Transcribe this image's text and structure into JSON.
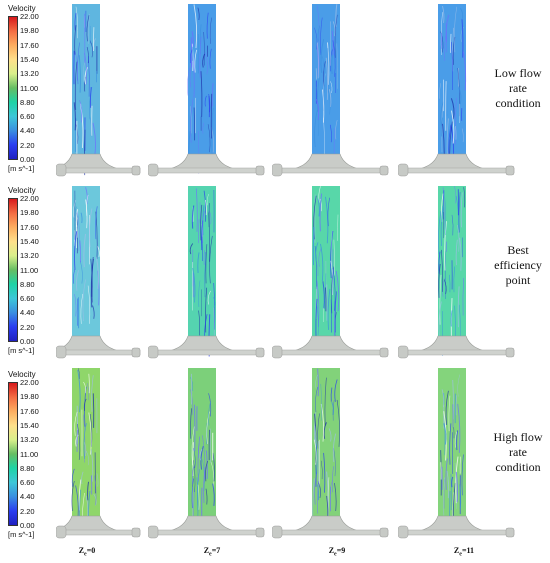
{
  "colorbar": {
    "title": "Velocity",
    "unit": "[m s^-1]",
    "ticks": [
      "22.00",
      "19.80",
      "17.60",
      "15.40",
      "13.20",
      "11.00",
      "8.80",
      "6.60",
      "4.40",
      "2.20",
      "0.00"
    ],
    "colors": [
      "#d7191c",
      "#f46d43",
      "#fdae61",
      "#fee08b",
      "#d9ef8b",
      "#66bd63",
      "#1fd3a6",
      "#3ec7d8",
      "#3a8fe0",
      "#2a3ef0",
      "#2020c0"
    ]
  },
  "conditions": [
    {
      "label": "Low flow rate condition",
      "lines": [
        "Low flow",
        "rate",
        "condition"
      ]
    },
    {
      "label": "Best efficiency point",
      "lines": [
        "Best",
        "efficiency",
        "point"
      ]
    },
    {
      "label": "High flow rate condition",
      "lines": [
        "High flow",
        "rate",
        "condition"
      ]
    }
  ],
  "columns": [
    {
      "z": "0",
      "sub": "e"
    },
    {
      "z": "7",
      "sub": "e"
    },
    {
      "z": "9",
      "sub": "e"
    },
    {
      "z": "11",
      "sub": "e"
    }
  ],
  "panel_fill": {
    "low": [
      "#5fb6e0",
      "#4a9de8",
      "#4a9de8",
      "#4a9de8"
    ],
    "bep": [
      "#6cc8dc",
      "#55d4b0",
      "#58d7a9",
      "#58d7a9"
    ],
    "high": [
      "#8fd66a",
      "#7cd07a",
      "#82d27a",
      "#84d47c"
    ]
  }
}
